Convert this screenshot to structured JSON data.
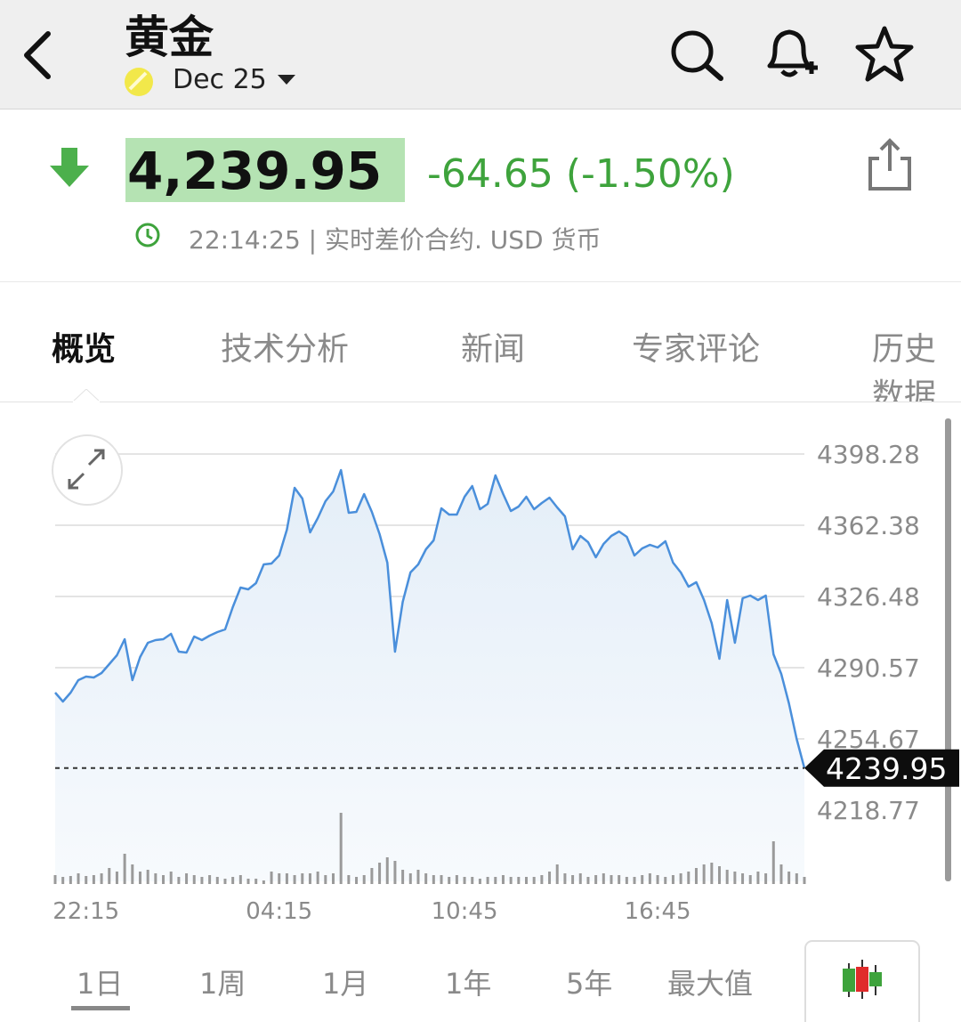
{
  "header": {
    "title": "黄金",
    "contract": "Dec 25"
  },
  "quote": {
    "price": "4,239.95",
    "change": "-64.65 (-1.50%)",
    "info": "22:14:25 | 实时差价合约. USD 货币"
  },
  "tabs": [
    "概览",
    "技术分析",
    "新闻",
    "专家评论",
    "历史数据"
  ],
  "chart_data": {
    "type": "line",
    "color": "#4a8fdb",
    "grid": true,
    "values": [
      4278.01,
      4273.53,
      4278.01,
      4284.3,
      4286.09,
      4285.64,
      4287.89,
      4292.37,
      4296.86,
      4304.94,
      4284.3,
      4295.96,
      4303.14,
      4304.49,
      4304.94,
      4307.63,
      4298.66,
      4298.21,
      4306.29,
      4304.49,
      4306.73,
      4308.53,
      4309.88,
      4321.09,
      4330.97,
      4330.07,
      4333.21,
      4342.63,
      4343.08,
      4347.12,
      4360.14,
      4381.23,
      4375.84,
      4358.79,
      4365.97,
      4374.5,
      4379.43,
      4390.2,
      4368.66,
      4369.11,
      4378.09,
      4369.11,
      4357.89,
      4343.53,
      4298.66,
      4323.79,
      4338.6,
      4342.63,
      4350.26,
      4354.75,
      4370.91,
      4367.76,
      4367.76,
      4376.74,
      4382.12,
      4370.46,
      4373.15,
      4387.51,
      4378.09,
      4369.56,
      4371.8,
      4376.74,
      4370.46,
      4373.6,
      4376.29,
      4371.35,
      4366.87,
      4350.26,
      4356.99,
      4353.85,
      4346.22,
      4352.96,
      4356.99,
      4359.24,
      4356.55,
      4347.12,
      4350.71,
      4352.51,
      4351.16,
      4354.3,
      4343.53,
      4338.6,
      4331.42,
      4333.66,
      4324.68,
      4313.02,
      4295.07,
      4324.68,
      4303.14,
      4325.58,
      4326.93,
      4324.68,
      4326.93,
      4297.31,
      4287.44,
      4272.63,
      4254.68,
      4239.95
    ],
    "volume": [
      10,
      8,
      9,
      12,
      9,
      10,
      12,
      18,
      14,
      34,
      22,
      14,
      16,
      12,
      10,
      14,
      8,
      12,
      10,
      8,
      10,
      8,
      6,
      8,
      10,
      6,
      6,
      4,
      14,
      12,
      12,
      10,
      12,
      12,
      14,
      10,
      12,
      80,
      10,
      8,
      10,
      18,
      24,
      30,
      26,
      16,
      12,
      16,
      12,
      10,
      10,
      8,
      10,
      8,
      8,
      6,
      8,
      8,
      10,
      8,
      8,
      8,
      8,
      10,
      14,
      22,
      12,
      10,
      12,
      8,
      10,
      12,
      10,
      10,
      8,
      8,
      10,
      12,
      10,
      8,
      10,
      12,
      14,
      18,
      22,
      24,
      20,
      16,
      14,
      12,
      10,
      14,
      12,
      48,
      22,
      14,
      12,
      8
    ],
    "volume_color": "#9a9a9a",
    "last_price": 4239.95,
    "xlim": [
      0,
      97
    ],
    "xticks": [
      {
        "value": 4,
        "label": "22:15"
      },
      {
        "value": 29,
        "label": "04:15"
      },
      {
        "value": 53,
        "label": "10:45"
      },
      {
        "value": 78,
        "label": "16:45"
      }
    ],
    "ylim": [
      4182.87,
      4416.23
    ],
    "yticks": [
      4218.77,
      4254.67,
      4290.57,
      4326.48,
      4362.38,
      4398.28
    ]
  },
  "ranges": [
    "1日",
    "1周",
    "1月",
    "1年",
    "5年",
    "最大值"
  ]
}
